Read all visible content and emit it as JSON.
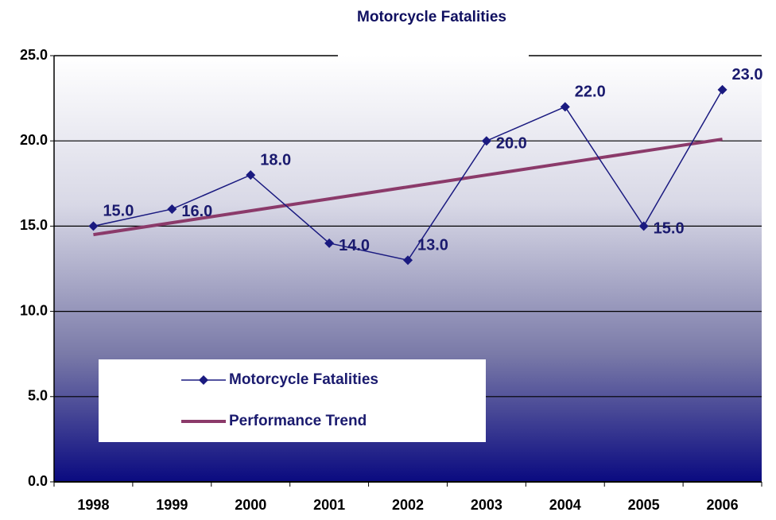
{
  "chart_data": {
    "type": "line",
    "title": "Motorcycle Fatalities",
    "categories": [
      "1998",
      "1999",
      "2000",
      "2001",
      "2002",
      "2003",
      "2004",
      "2005",
      "2006"
    ],
    "series": [
      {
        "name": "Motorcycle Fatalities",
        "color": "#1a1a80",
        "values": [
          15,
          16,
          18,
          14,
          13,
          20,
          22,
          15,
          23
        ],
        "value_labels": [
          "15.0",
          "16.0",
          "18.0",
          "14.0",
          "13.0",
          "20.0",
          "22.0",
          "15.0",
          "23.0"
        ]
      },
      {
        "name": "Performance Trend",
        "color": "#8b3a6a",
        "values": [
          14.5,
          15.2,
          15.9,
          16.6,
          17.3,
          18.0,
          18.7,
          19.4,
          20.1
        ]
      }
    ],
    "ylim": [
      0,
      25
    ],
    "yticks": [
      {
        "value": 0,
        "label": "0.0"
      },
      {
        "value": 5,
        "label": "5.0"
      },
      {
        "value": 10,
        "label": "10.0"
      },
      {
        "value": 15,
        "label": "15.0"
      },
      {
        "value": 20,
        "label": "20.0"
      },
      {
        "value": 25,
        "label": "25.0"
      }
    ],
    "grid": true
  }
}
